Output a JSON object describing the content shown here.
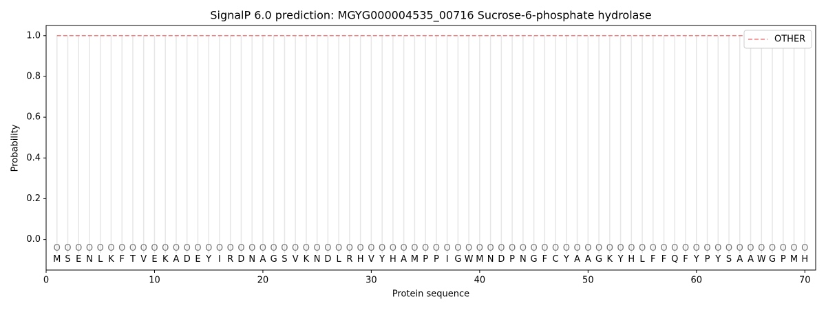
{
  "chart_data": {
    "type": "line",
    "title": "SignalP 6.0 prediction: MGYG000004535_00716 Sucrose-6-phosphate hydrolase",
    "xlabel": "Protein sequence",
    "ylabel": "Probability",
    "x": [
      1,
      2,
      3,
      4,
      5,
      6,
      7,
      8,
      9,
      10,
      11,
      12,
      13,
      14,
      15,
      16,
      17,
      18,
      19,
      20,
      21,
      22,
      23,
      24,
      25,
      26,
      27,
      28,
      29,
      30,
      31,
      32,
      33,
      34,
      35,
      36,
      37,
      38,
      39,
      40,
      41,
      42,
      43,
      44,
      45,
      46,
      47,
      48,
      49,
      50,
      51,
      52,
      53,
      54,
      55,
      56,
      57,
      58,
      59,
      60,
      61,
      62,
      63,
      64,
      65,
      66,
      67,
      68,
      69,
      70
    ],
    "sequence": [
      "M",
      "S",
      "E",
      "N",
      "L",
      "K",
      "F",
      "T",
      "V",
      "E",
      "K",
      "A",
      "D",
      "E",
      "Y",
      "I",
      "R",
      "D",
      "N",
      "A",
      "G",
      "S",
      "V",
      "K",
      "N",
      "D",
      "L",
      "R",
      "H",
      "V",
      "Y",
      "H",
      "A",
      "M",
      "P",
      "P",
      "I",
      "G",
      "W",
      "M",
      "N",
      "D",
      "P",
      "N",
      "G",
      "F",
      "C",
      "Y",
      "A",
      "A",
      "G",
      "K",
      "Y",
      "H",
      "L",
      "F",
      "F",
      "Q",
      "F",
      "Y",
      "P",
      "Y",
      "S",
      "A",
      "A",
      "W",
      "G",
      "P",
      "M",
      "H"
    ],
    "labels": [
      "O",
      "O",
      "O",
      "O",
      "O",
      "O",
      "O",
      "O",
      "O",
      "O",
      "O",
      "O",
      "O",
      "O",
      "O",
      "O",
      "O",
      "O",
      "O",
      "O",
      "O",
      "O",
      "O",
      "O",
      "O",
      "O",
      "O",
      "O",
      "O",
      "O",
      "O",
      "O",
      "O",
      "O",
      "O",
      "O",
      "O",
      "O",
      "O",
      "O",
      "O",
      "O",
      "O",
      "O",
      "O",
      "O",
      "O",
      "O",
      "O",
      "O",
      "O",
      "O",
      "O",
      "O",
      "O",
      "O",
      "O",
      "O",
      "O",
      "O",
      "O",
      "O",
      "O",
      "O",
      "O",
      "O",
      "O",
      "O",
      "O",
      "O"
    ],
    "series": [
      {
        "name": "OTHER",
        "color": "#f08080",
        "dashed": true,
        "values": [
          1,
          1,
          1,
          1,
          1,
          1,
          1,
          1,
          1,
          1,
          1,
          1,
          1,
          1,
          1,
          1,
          1,
          1,
          1,
          1,
          1,
          1,
          1,
          1,
          1,
          1,
          1,
          1,
          1,
          1,
          1,
          1,
          1,
          1,
          1,
          1,
          1,
          1,
          1,
          1,
          1,
          1,
          1,
          1,
          1,
          1,
          1,
          1,
          1,
          1,
          1,
          1,
          1,
          1,
          1,
          1,
          1,
          1,
          1,
          1,
          1,
          1,
          1,
          1,
          1,
          1,
          1,
          1,
          1,
          1
        ]
      }
    ],
    "xlim": [
      0,
      71
    ],
    "ylim": [
      -0.15,
      1.05
    ],
    "xticks": [
      0,
      10,
      20,
      30,
      40,
      50,
      60,
      70
    ],
    "yticks": [
      {
        "value": 0,
        "label": "0.0"
      },
      0.2,
      0.4,
      0.6,
      0.8,
      {
        "value": 1,
        "label": "1.0"
      }
    ],
    "legend": "upper right",
    "grid": true
  }
}
